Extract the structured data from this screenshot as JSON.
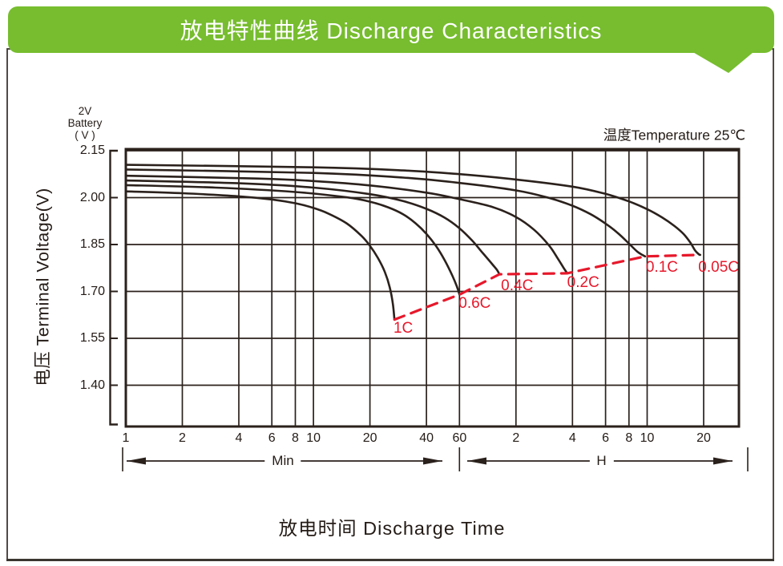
{
  "header": {
    "title": "放电特性曲线  Discharge Characteristics"
  },
  "colors": {
    "header_green": "#77bd2f",
    "title_text": "#ffffff",
    "ink": "#2b211c",
    "border": "#3c3631",
    "accent_red": "#e7182b"
  },
  "chart_data": {
    "type": "line",
    "title": "放电特性曲线  Discharge Characteristics",
    "annotation": "温度Temperature 25℃",
    "x_scale": "log",
    "xlim_minutes": [
      1,
      1850
    ],
    "ylim": [
      1.27,
      2.15
    ],
    "grid": true,
    "x_axis": {
      "label": "放电时间  Discharge Time",
      "ticks": [
        {
          "t": 1,
          "label": "1"
        },
        {
          "t": 2,
          "label": "2"
        },
        {
          "t": 4,
          "label": "4"
        },
        {
          "t": 6,
          "label": "6"
        },
        {
          "t": 8,
          "label": "8"
        },
        {
          "t": 10,
          "label": "10"
        },
        {
          "t": 20,
          "label": "20"
        },
        {
          "t": 40,
          "label": "40"
        },
        {
          "t": 60,
          "label": "60"
        },
        {
          "t": 120,
          "label": "2"
        },
        {
          "t": 240,
          "label": "4"
        },
        {
          "t": 360,
          "label": "6"
        },
        {
          "t": 480,
          "label": "8"
        },
        {
          "t": 600,
          "label": "10"
        },
        {
          "t": 1200,
          "label": "20"
        }
      ],
      "ranges": [
        {
          "label": "Min",
          "from_min": 1,
          "to_min": 60
        },
        {
          "label": "H",
          "from_min": 60,
          "to_min": 1850
        }
      ]
    },
    "y_axis": {
      "label": "电压 Terminal Voltage(V)",
      "unit_header": [
        "2V",
        "Battery",
        "( V )"
      ],
      "ticks": [
        {
          "v": 2.15,
          "label": "2.15"
        },
        {
          "v": 2.0,
          "label": "2.00"
        },
        {
          "v": 1.85,
          "label": "1.85"
        },
        {
          "v": 1.7,
          "label": "1.70"
        },
        {
          "v": 1.55,
          "label": "1.55"
        },
        {
          "v": 1.4,
          "label": "1.40"
        }
      ]
    },
    "series": [
      {
        "name": "1C",
        "points": [
          [
            1,
            2.02
          ],
          [
            2,
            2.014
          ],
          [
            4,
            2.004
          ],
          [
            6,
            1.994
          ],
          [
            8,
            1.982
          ],
          [
            10,
            1.967
          ],
          [
            12,
            1.949
          ],
          [
            15,
            1.918
          ],
          [
            18,
            1.878
          ],
          [
            20,
            1.846
          ],
          [
            22,
            1.808
          ],
          [
            24,
            1.762
          ],
          [
            25.5,
            1.713
          ],
          [
            26.5,
            1.66
          ],
          [
            27,
            1.61
          ]
        ]
      },
      {
        "name": "0.6C",
        "points": [
          [
            1,
            2.04
          ],
          [
            3,
            2.032
          ],
          [
            8,
            2.018
          ],
          [
            15,
            2.001
          ],
          [
            20,
            1.987
          ],
          [
            25,
            1.969
          ],
          [
            30,
            1.947
          ],
          [
            35,
            1.918
          ],
          [
            40,
            1.884
          ],
          [
            45,
            1.845
          ],
          [
            50,
            1.8
          ],
          [
            55,
            1.75
          ],
          [
            58,
            1.717
          ],
          [
            60,
            1.69
          ]
        ]
      },
      {
        "name": "0.4C",
        "points": [
          [
            1,
            2.055
          ],
          [
            4,
            2.046
          ],
          [
            10,
            2.032
          ],
          [
            20,
            2.011
          ],
          [
            30,
            1.989
          ],
          [
            40,
            1.964
          ],
          [
            50,
            1.936
          ],
          [
            60,
            1.902
          ],
          [
            70,
            1.863
          ],
          [
            80,
            1.822
          ],
          [
            90,
            1.786
          ],
          [
            95,
            1.769
          ],
          [
            98,
            1.755
          ]
        ]
      },
      {
        "name": "0.2C",
        "points": [
          [
            1,
            2.07
          ],
          [
            5,
            2.061
          ],
          [
            10,
            2.053
          ],
          [
            20,
            2.039
          ],
          [
            40,
            2.016
          ],
          [
            60,
            1.995
          ],
          [
            90,
            1.97
          ],
          [
            120,
            1.938
          ],
          [
            150,
            1.897
          ],
          [
            180,
            1.847
          ],
          [
            200,
            1.806
          ],
          [
            215,
            1.776
          ],
          [
            225,
            1.758
          ]
        ]
      },
      {
        "name": "0.1C",
        "points": [
          [
            1,
            2.09
          ],
          [
            10,
            2.079
          ],
          [
            30,
            2.064
          ],
          [
            60,
            2.047
          ],
          [
            120,
            2.023
          ],
          [
            180,
            1.999
          ],
          [
            240,
            1.974
          ],
          [
            300,
            1.947
          ],
          [
            360,
            1.917
          ],
          [
            420,
            1.886
          ],
          [
            480,
            1.853
          ],
          [
            530,
            1.828
          ],
          [
            565,
            1.817
          ],
          [
            585,
            1.812
          ]
        ]
      },
      {
        "name": "0.05C",
        "points": [
          [
            1,
            2.105
          ],
          [
            10,
            2.097
          ],
          [
            30,
            2.087
          ],
          [
            60,
            2.075
          ],
          [
            120,
            2.058
          ],
          [
            240,
            2.035
          ],
          [
            360,
            2.012
          ],
          [
            480,
            1.988
          ],
          [
            600,
            1.963
          ],
          [
            720,
            1.937
          ],
          [
            840,
            1.909
          ],
          [
            940,
            1.883
          ],
          [
            1020,
            1.856
          ],
          [
            1080,
            1.831
          ],
          [
            1130,
            1.819
          ],
          [
            1150,
            1.817
          ]
        ]
      }
    ],
    "cutoff_line": {
      "style": "dashed",
      "points": [
        [
          27,
          1.61
        ],
        [
          60,
          1.69
        ],
        [
          98,
          1.755
        ],
        [
          225,
          1.758
        ],
        [
          585,
          1.812
        ],
        [
          1150,
          1.817
        ]
      ]
    }
  }
}
